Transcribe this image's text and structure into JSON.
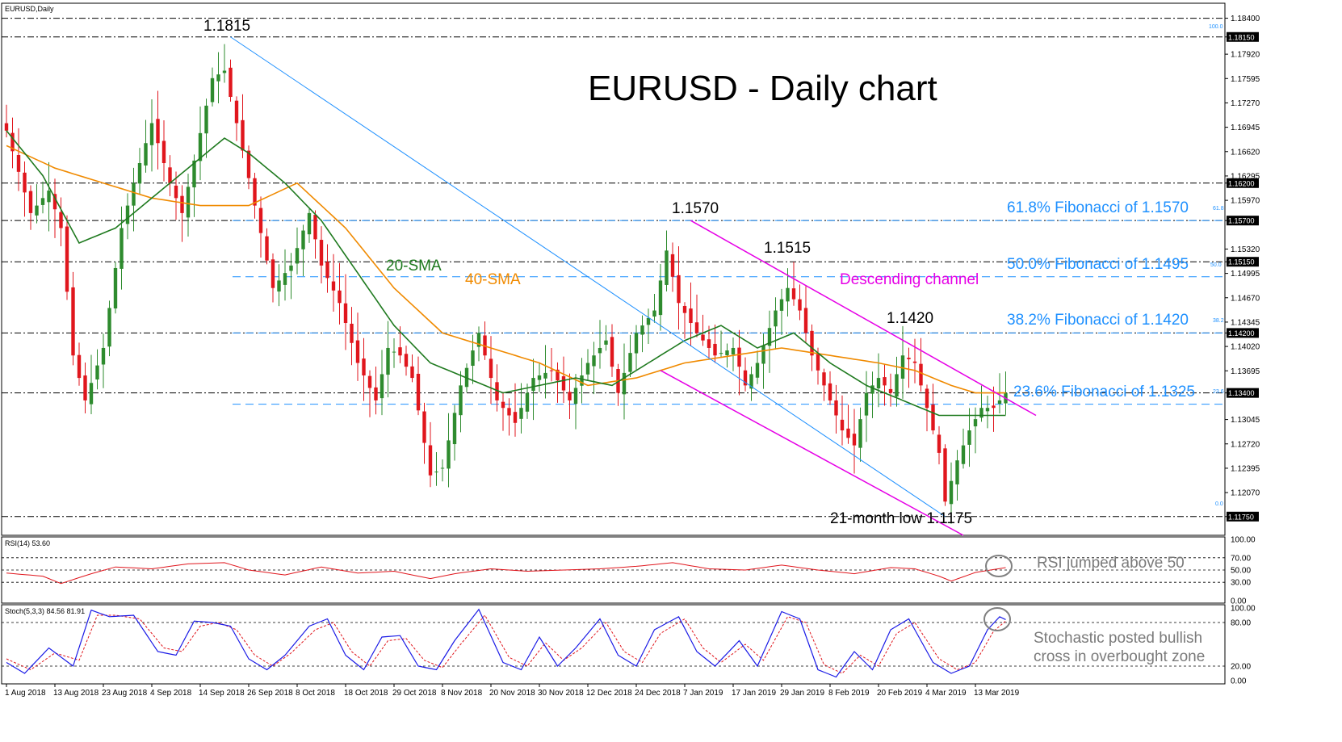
{
  "symbol_label": "EURUSD,Daily",
  "colors": {
    "bull": "#2e8b2e",
    "bear": "#e0161d",
    "sma20": "#1f7a1f",
    "sma40": "#f08a00",
    "channel": "#e600e6",
    "trend": "#1e90ff",
    "fib_text": "#1e90ff",
    "rsi": "#e0161d",
    "stoch_main": "#1a1ae6",
    "stoch_signal": "#e0161d",
    "grid": "#000000",
    "circle": "#808080"
  },
  "chart_data": [
    {
      "type": "candlestick",
      "title": "EURUSD - Daily chart",
      "ylim": [
        1.115,
        1.186
      ],
      "y_ticks": [
        "1.18400",
        "1.18150",
        "1.17920",
        "1.17595",
        "1.17270",
        "1.16945",
        "1.16620",
        "1.16295",
        "1.16200",
        "1.15970",
        "1.15700",
        "1.15320",
        "1.15150",
        "1.14995",
        "1.14670",
        "1.14345",
        "1.14200",
        "1.14020",
        "1.13695",
        "1.13400",
        "1.13045",
        "1.12720",
        "1.12395",
        "1.12070",
        "1.11750"
      ],
      "y_tick_values": [
        1.184,
        1.1815,
        1.1792,
        1.17595,
        1.1727,
        1.16945,
        1.1662,
        1.16295,
        1.162,
        1.1597,
        1.157,
        1.1532,
        1.1515,
        1.14995,
        1.1467,
        1.14345,
        1.142,
        1.1402,
        1.13695,
        1.134,
        1.13045,
        1.1272,
        1.12395,
        1.1207,
        1.1175
      ],
      "highlighted_ticks": [
        "1.18150",
        "1.16200",
        "1.15700",
        "1.15150",
        "1.14200",
        "1.13400",
        "1.11750"
      ],
      "x_labels": [
        "1 Aug 2018",
        "13 Aug 2018",
        "23 Aug 2018",
        "4 Sep 2018",
        "14 Sep 2018",
        "26 Sep 2018",
        "8 Oct 2018",
        "18 Oct 2018",
        "29 Oct 2018",
        "8 Nov 2018",
        "20 Nov 2018",
        "30 Nov 2018",
        "12 Dec 2018",
        "24 Dec 2018",
        "7 Jan 2019",
        "17 Jan 2019",
        "29 Jan 2019",
        "8 Feb 2019",
        "20 Feb 2019",
        "4 Mar 2019",
        "13 Mar 2019"
      ],
      "x_label_index": [
        0,
        8,
        16,
        24,
        32,
        40,
        48,
        56,
        64,
        72,
        80,
        88,
        96,
        104,
        112,
        120,
        128,
        136,
        144,
        152,
        160
      ],
      "horizontal_levels": [
        1.184,
        1.1815,
        1.162,
        1.157,
        1.1515,
        1.142,
        1.134,
        1.1175
      ],
      "fibonacci": [
        {
          "label": "61.8% Fibonacci of 1.1570",
          "level_tag": "61.8",
          "value": 1.157
        },
        {
          "label": "50.0% Fibonacci of 1.1495",
          "level_tag": "50.0",
          "value": 1.1495
        },
        {
          "label": "38.2% Fibonacci of 1.1420",
          "level_tag": "38.2",
          "value": 1.142
        },
        {
          "label": "23.6% Fibonacci of 1.1325",
          "level_tag": "23.6",
          "value": 1.1325
        }
      ],
      "fib_extreme_tags": [
        {
          "tag": "100.0",
          "value": 1.1815
        },
        {
          "tag": "0.0",
          "value": 1.1175
        }
      ],
      "price_annotations": [
        "1.1815",
        "1.1570",
        "1.1515",
        "1.1420",
        "21-month low 1.1175"
      ],
      "annotation_values": [
        1.1815,
        1.157,
        1.1515,
        1.142,
        1.1175
      ],
      "indicator_labels": {
        "sma20": "20-SMA",
        "sma40": "40-SMA",
        "channel": "Descending channel"
      },
      "candle_anchors": [
        [
          0,
          1.169
        ],
        [
          4,
          1.158
        ],
        [
          7,
          1.161
        ],
        [
          9,
          1.156
        ],
        [
          11,
          1.139
        ],
        [
          13,
          1.133
        ],
        [
          16,
          1.14
        ],
        [
          19,
          1.156
        ],
        [
          21,
          1.162
        ],
        [
          24,
          1.17
        ],
        [
          27,
          1.162
        ],
        [
          29,
          1.158
        ],
        [
          31,
          1.165
        ],
        [
          34,
          1.176
        ],
        [
          36,
          1.177
        ],
        [
          38,
          1.17
        ],
        [
          41,
          1.159
        ],
        [
          44,
          1.148
        ],
        [
          47,
          1.151
        ],
        [
          50,
          1.158
        ],
        [
          52,
          1.151
        ],
        [
          55,
          1.146
        ],
        [
          58,
          1.138
        ],
        [
          61,
          1.133
        ],
        [
          63,
          1.14
        ],
        [
          65,
          1.139
        ],
        [
          67,
          1.136
        ],
        [
          70,
          1.123
        ],
        [
          72,
          1.124
        ],
        [
          75,
          1.135
        ],
        [
          78,
          1.142
        ],
        [
          81,
          1.133
        ],
        [
          84,
          1.13
        ],
        [
          87,
          1.136
        ],
        [
          90,
          1.137
        ],
        [
          93,
          1.133
        ],
        [
          96,
          1.138
        ],
        [
          99,
          1.141
        ],
        [
          101,
          1.134
        ],
        [
          104,
          1.142
        ],
        [
          107,
          1.145
        ],
        [
          109,
          1.153
        ],
        [
          111,
          1.146
        ],
        [
          114,
          1.142
        ],
        [
          117,
          1.139
        ],
        [
          120,
          1.14
        ],
        [
          122,
          1.135
        ],
        [
          124,
          1.138
        ],
        [
          127,
          1.145
        ],
        [
          129,
          1.148
        ],
        [
          131,
          1.145
        ],
        [
          133,
          1.139
        ],
        [
          136,
          1.133
        ],
        [
          138,
          1.129
        ],
        [
          140,
          1.127
        ],
        [
          142,
          1.134
        ],
        [
          144,
          1.136
        ],
        [
          146,
          1.134
        ],
        [
          148,
          1.139
        ],
        [
          150,
          1.138
        ],
        [
          152,
          1.132
        ],
        [
          154,
          1.126
        ],
        [
          155,
          1.1195
        ],
        [
          157,
          1.125
        ],
        [
          159,
          1.129
        ],
        [
          161,
          1.132
        ],
        [
          163,
          1.132
        ],
        [
          165,
          1.134
        ]
      ],
      "sma20_anchors": [
        [
          0,
          1.169
        ],
        [
          6,
          1.163
        ],
        [
          12,
          1.154
        ],
        [
          18,
          1.156
        ],
        [
          24,
          1.16
        ],
        [
          30,
          1.164
        ],
        [
          36,
          1.168
        ],
        [
          40,
          1.166
        ],
        [
          46,
          1.162
        ],
        [
          52,
          1.157
        ],
        [
          58,
          1.15
        ],
        [
          64,
          1.143
        ],
        [
          70,
          1.138
        ],
        [
          76,
          1.136
        ],
        [
          82,
          1.134
        ],
        [
          88,
          1.135
        ],
        [
          94,
          1.136
        ],
        [
          100,
          1.135
        ],
        [
          106,
          1.138
        ],
        [
          112,
          1.141
        ],
        [
          118,
          1.143
        ],
        [
          124,
          1.14
        ],
        [
          130,
          1.142
        ],
        [
          136,
          1.138
        ],
        [
          142,
          1.135
        ],
        [
          148,
          1.133
        ],
        [
          154,
          1.131
        ],
        [
          158,
          1.131
        ],
        [
          162,
          1.131
        ],
        [
          165,
          1.131
        ]
      ],
      "sma40_anchors": [
        [
          0,
          1.167
        ],
        [
          8,
          1.164
        ],
        [
          16,
          1.162
        ],
        [
          24,
          1.16
        ],
        [
          32,
          1.159
        ],
        [
          40,
          1.159
        ],
        [
          48,
          1.162
        ],
        [
          56,
          1.156
        ],
        [
          64,
          1.148
        ],
        [
          72,
          1.142
        ],
        [
          80,
          1.14
        ],
        [
          88,
          1.138
        ],
        [
          96,
          1.135
        ],
        [
          104,
          1.136
        ],
        [
          112,
          1.138
        ],
        [
          120,
          1.139
        ],
        [
          128,
          1.14
        ],
        [
          136,
          1.139
        ],
        [
          144,
          1.138
        ],
        [
          150,
          1.137
        ],
        [
          156,
          1.135
        ],
        [
          160,
          1.134
        ],
        [
          165,
          1.134
        ]
      ],
      "trendline": {
        "from": [
          37,
          1.1815
        ],
        "to": [
          155,
          1.1175
        ]
      },
      "channel_upper": {
        "from": [
          113,
          1.157
        ],
        "to": [
          170,
          1.131
        ]
      },
      "channel_lower": {
        "from": [
          108,
          1.137
        ],
        "to": [
          158,
          1.115
        ]
      }
    },
    {
      "type": "line",
      "title": "RSI(14) 53.60",
      "ylim": [
        0,
        100
      ],
      "y_ticks": [
        "100.00",
        "70.00",
        "50.00",
        "30.00",
        "0.00"
      ],
      "y_tick_values": [
        100,
        70,
        50,
        30,
        0
      ],
      "annotation": "RSI jumped above 50",
      "anchors": [
        [
          0,
          45
        ],
        [
          6,
          40
        ],
        [
          9,
          28
        ],
        [
          14,
          44
        ],
        [
          18,
          55
        ],
        [
          24,
          52
        ],
        [
          30,
          60
        ],
        [
          36,
          62
        ],
        [
          40,
          50
        ],
        [
          46,
          42
        ],
        [
          52,
          55
        ],
        [
          58,
          45
        ],
        [
          64,
          48
        ],
        [
          70,
          36
        ],
        [
          74,
          44
        ],
        [
          80,
          52
        ],
        [
          86,
          48
        ],
        [
          92,
          50
        ],
        [
          98,
          52
        ],
        [
          104,
          56
        ],
        [
          110,
          62
        ],
        [
          116,
          52
        ],
        [
          122,
          50
        ],
        [
          128,
          58
        ],
        [
          134,
          50
        ],
        [
          140,
          44
        ],
        [
          146,
          54
        ],
        [
          150,
          52
        ],
        [
          154,
          40
        ],
        [
          156,
          32
        ],
        [
          160,
          46
        ],
        [
          165,
          54
        ]
      ]
    },
    {
      "type": "line",
      "title": "Stoch(5,3,3) 84.56 81.91",
      "ylim": [
        0,
        100
      ],
      "y_ticks": [
        "100.00",
        "80.00",
        "20.00",
        "0.00"
      ],
      "y_tick_values": [
        100,
        80,
        20,
        0
      ],
      "annotation_lines": [
        "Stochastic posted bullish",
        "cross in overbought zone"
      ],
      "main_anchors": [
        [
          0,
          25
        ],
        [
          3,
          10
        ],
        [
          7,
          45
        ],
        [
          11,
          20
        ],
        [
          14,
          97
        ],
        [
          17,
          88
        ],
        [
          21,
          90
        ],
        [
          25,
          40
        ],
        [
          28,
          35
        ],
        [
          31,
          82
        ],
        [
          34,
          80
        ],
        [
          37,
          75
        ],
        [
          40,
          30
        ],
        [
          43,
          15
        ],
        [
          46,
          35
        ],
        [
          50,
          75
        ],
        [
          53,
          85
        ],
        [
          56,
          35
        ],
        [
          59,
          15
        ],
        [
          62,
          60
        ],
        [
          65,
          62
        ],
        [
          68,
          20
        ],
        [
          71,
          15
        ],
        [
          74,
          55
        ],
        [
          78,
          98
        ],
        [
          82,
          25
        ],
        [
          85,
          15
        ],
        [
          88,
          60
        ],
        [
          91,
          20
        ],
        [
          94,
          45
        ],
        [
          98,
          85
        ],
        [
          101,
          35
        ],
        [
          104,
          20
        ],
        [
          107,
          70
        ],
        [
          111,
          88
        ],
        [
          114,
          40
        ],
        [
          117,
          20
        ],
        [
          121,
          55
        ],
        [
          124,
          20
        ],
        [
          128,
          95
        ],
        [
          131,
          85
        ],
        [
          134,
          15
        ],
        [
          137,
          5
        ],
        [
          140,
          40
        ],
        [
          143,
          15
        ],
        [
          146,
          70
        ],
        [
          149,
          85
        ],
        [
          153,
          25
        ],
        [
          156,
          10
        ],
        [
          159,
          20
        ],
        [
          162,
          70
        ],
        [
          164,
          88
        ],
        [
          165,
          84
        ]
      ],
      "signal_anchors": [
        [
          0,
          30
        ],
        [
          4,
          15
        ],
        [
          8,
          38
        ],
        [
          12,
          28
        ],
        [
          15,
          90
        ],
        [
          18,
          90
        ],
        [
          22,
          85
        ],
        [
          26,
          45
        ],
        [
          29,
          40
        ],
        [
          32,
          75
        ],
        [
          35,
          80
        ],
        [
          38,
          70
        ],
        [
          41,
          35
        ],
        [
          44,
          20
        ],
        [
          47,
          38
        ],
        [
          51,
          70
        ],
        [
          54,
          80
        ],
        [
          57,
          40
        ],
        [
          60,
          20
        ],
        [
          63,
          55
        ],
        [
          66,
          58
        ],
        [
          69,
          28
        ],
        [
          72,
          18
        ],
        [
          75,
          50
        ],
        [
          79,
          90
        ],
        [
          83,
          32
        ],
        [
          86,
          20
        ],
        [
          89,
          52
        ],
        [
          92,
          28
        ],
        [
          95,
          45
        ],
        [
          99,
          80
        ],
        [
          102,
          40
        ],
        [
          105,
          25
        ],
        [
          108,
          65
        ],
        [
          112,
          85
        ],
        [
          115,
          45
        ],
        [
          118,
          25
        ],
        [
          122,
          50
        ],
        [
          125,
          28
        ],
        [
          129,
          88
        ],
        [
          132,
          80
        ],
        [
          135,
          22
        ],
        [
          138,
          10
        ],
        [
          141,
          35
        ],
        [
          144,
          20
        ],
        [
          147,
          65
        ],
        [
          150,
          80
        ],
        [
          154,
          30
        ],
        [
          157,
          15
        ],
        [
          160,
          25
        ],
        [
          163,
          68
        ],
        [
          165,
          82
        ]
      ]
    }
  ]
}
